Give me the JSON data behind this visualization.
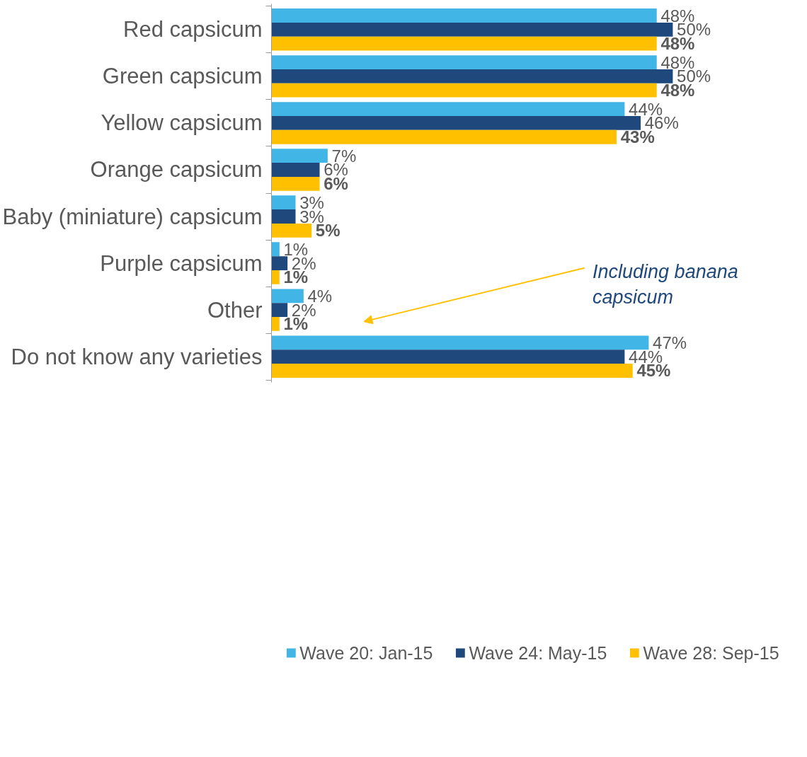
{
  "chart_data": {
    "type": "bar",
    "orientation": "horizontal",
    "categories": [
      "Red capsicum",
      "Green capsicum",
      "Yellow capsicum",
      "Orange capsicum",
      "Baby (miniature) capsicum",
      "Purple capsicum",
      "Other",
      "Do not know any varieties"
    ],
    "series": [
      {
        "name": "Wave 20: Jan-15",
        "color": "#41b6e6",
        "values": [
          48,
          48,
          44,
          7,
          3,
          1,
          4,
          47
        ],
        "value_labels": [
          "48%",
          "48%",
          "44%",
          "7%",
          "3%",
          "1%",
          "4%",
          "47%"
        ]
      },
      {
        "name": "Wave 24: May-15",
        "color": "#1f497d",
        "values": [
          50,
          50,
          46,
          6,
          3,
          2,
          2,
          44
        ],
        "value_labels": [
          "50%",
          "50%",
          "46%",
          "6%",
          "3%",
          "2%",
          "2%",
          "44%"
        ]
      },
      {
        "name": "Wave 28: Sep-15",
        "color": "#ffc000",
        "values": [
          48,
          48,
          43,
          6,
          5,
          1,
          1,
          45
        ],
        "value_labels": [
          "48%",
          "48%",
          "43%",
          "6%",
          "5%",
          "1%",
          "1%",
          "45%"
        ]
      }
    ],
    "grid": false,
    "legend": "bottom",
    "annotations": [
      "Including banana\ncapsicum"
    ]
  }
}
